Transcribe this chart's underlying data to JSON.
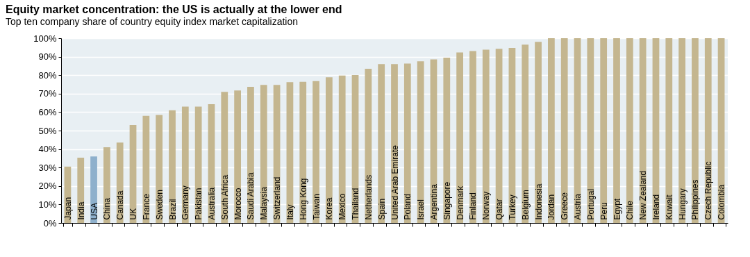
{
  "chart_data": {
    "type": "bar",
    "title": "Equity market concentration: the US is actually at the lower end",
    "subtitle": "Top ten company share of country equity index market capitalization",
    "categories": [
      "Japan",
      "India",
      "USA",
      "China",
      "Canada",
      "UK",
      "France",
      "Sweden",
      "Brazil",
      "Germany",
      "Pakistan",
      "Australia",
      "South Africa",
      "Morocco",
      "Saudi Arabia",
      "Malaysia",
      "Switzerland",
      "Italy",
      "Hong Kong",
      "Taiwan",
      "Korea",
      "Mexico",
      "Thailand",
      "Netherlands",
      "Spain",
      "United Arab Emirate",
      "Poland",
      "Israel",
      "Argentina",
      "Singapore",
      "Denmark",
      "Finland",
      "Norway",
      "Qatar",
      "Turkey",
      "Belgium",
      "Indonesia",
      "Jordan",
      "Greece",
      "Austria",
      "Portugal",
      "Peru",
      "Egypt",
      "Chile",
      "New Zealand",
      "Ireland",
      "Kuwait",
      "Hungary",
      "Philippines",
      "Czech Republic",
      "Colombia"
    ],
    "values": [
      30.5,
      35.3,
      36,
      41,
      43.5,
      53,
      58,
      58.5,
      61,
      63,
      63,
      64.3,
      71,
      71.7,
      73.7,
      74.7,
      74.7,
      76.2,
      76.4,
      76.8,
      78.9,
      79.8,
      80.1,
      83.5,
      86,
      86,
      86.3,
      87.5,
      88.5,
      89.5,
      92.3,
      93,
      93.8,
      94.3,
      94.7,
      96.5,
      98,
      100,
      100,
      100,
      100,
      100,
      100,
      100,
      100,
      100,
      100,
      100,
      100,
      100,
      100
    ],
    "colors": [
      "#c4b68f",
      "#c4b68f",
      "#8eb0cc",
      "#c4b68f",
      "#c4b68f",
      "#c4b68f",
      "#c4b68f",
      "#c4b68f",
      "#c4b68f",
      "#c4b68f",
      "#c4b68f",
      "#c4b68f",
      "#c4b68f",
      "#c4b68f",
      "#c4b68f",
      "#c4b68f",
      "#c4b68f",
      "#c4b68f",
      "#c4b68f",
      "#c4b68f",
      "#c4b68f",
      "#c4b68f",
      "#c4b68f",
      "#c4b68f",
      "#c4b68f",
      "#c4b68f",
      "#c4b68f",
      "#c4b68f",
      "#c4b68f",
      "#c4b68f",
      "#c4b68f",
      "#c4b68f",
      "#c4b68f",
      "#c4b68f",
      "#c4b68f",
      "#c4b68f",
      "#c4b68f",
      "#c4b68f",
      "#c4b68f",
      "#c4b68f",
      "#c4b68f",
      "#c4b68f",
      "#c4b68f",
      "#c4b68f",
      "#c4b68f",
      "#c4b68f",
      "#c4b68f",
      "#c4b68f",
      "#c4b68f",
      "#c4b68f",
      "#c4b68f"
    ],
    "ylim": [
      0,
      100
    ],
    "yticks": [
      {
        "value": 0,
        "label": "0%"
      },
      {
        "value": 10,
        "label": "10%"
      },
      {
        "value": 20,
        "label": "20%"
      },
      {
        "value": 30,
        "label": "30%"
      },
      {
        "value": 40,
        "label": "40%"
      },
      {
        "value": 50,
        "label": "50%"
      },
      {
        "value": 60,
        "label": "60%"
      },
      {
        "value": 70,
        "label": "70%"
      },
      {
        "value": 80,
        "label": "80%"
      },
      {
        "value": 90,
        "label": "90%"
      },
      {
        "value": 100,
        "label": "100%"
      }
    ],
    "grid": "y"
  }
}
